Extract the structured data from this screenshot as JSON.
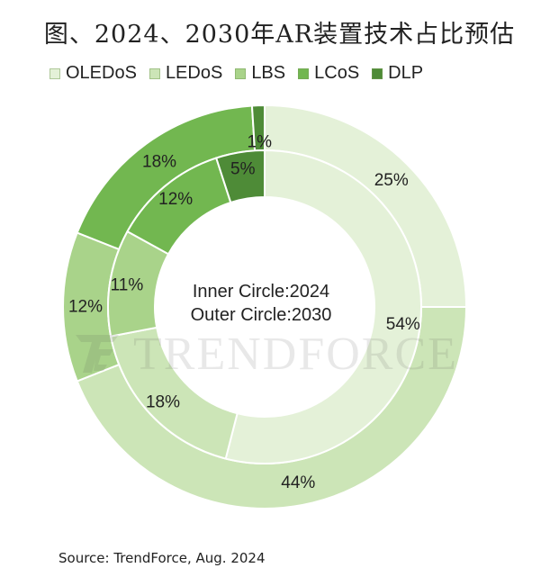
{
  "chart_data": {
    "type": "donut",
    "title": "图、2024、2030年AR装置技术占比预估",
    "center_label_lines": [
      "Inner Circle:2024",
      "Outer Circle:2030"
    ],
    "legend_placement": "top",
    "categories": [
      "OLEDoS",
      "LEDoS",
      "LBS",
      "LCoS",
      "DLP"
    ],
    "colors": [
      "#e4f1d8",
      "#cce5b7",
      "#a9d38a",
      "#72b750",
      "#4e8b37"
    ],
    "series": [
      {
        "name": "2024",
        "ring": "inner",
        "values": [
          54,
          18,
          11,
          12,
          5
        ]
      },
      {
        "name": "2030",
        "ring": "outer",
        "values": [
          25,
          44,
          12,
          18,
          1
        ]
      }
    ],
    "value_suffix": "%"
  },
  "watermark": {
    "text": "TRENDFORCE"
  },
  "source": "Source: TrendForce, Aug. 2024"
}
